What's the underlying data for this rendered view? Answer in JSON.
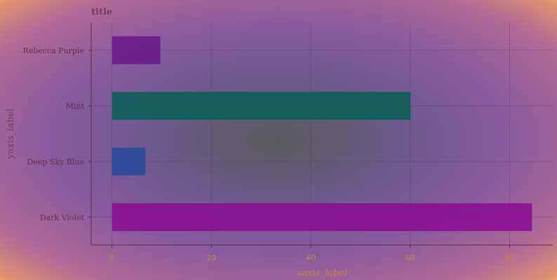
{
  "chart_data": {
    "type": "bar",
    "orientation": "horizontal",
    "title": "title",
    "xlabel": "xaxis_label",
    "ylabel": "yaxis_label",
    "categories": [
      "Dark Violet",
      "Deep Sky Blue",
      "Mint",
      "Rebecca Purple"
    ],
    "values": [
      84.5,
      6.7,
      60.1,
      9.7
    ],
    "colors": [
      "#8a0f94",
      "#2a4a9c",
      "#0d5e58",
      "#6a1a8a"
    ],
    "xlim": [
      -4.2,
      88.7
    ],
    "xticks": [
      0,
      20,
      40,
      60,
      80
    ],
    "grid": true,
    "legend": "none"
  }
}
